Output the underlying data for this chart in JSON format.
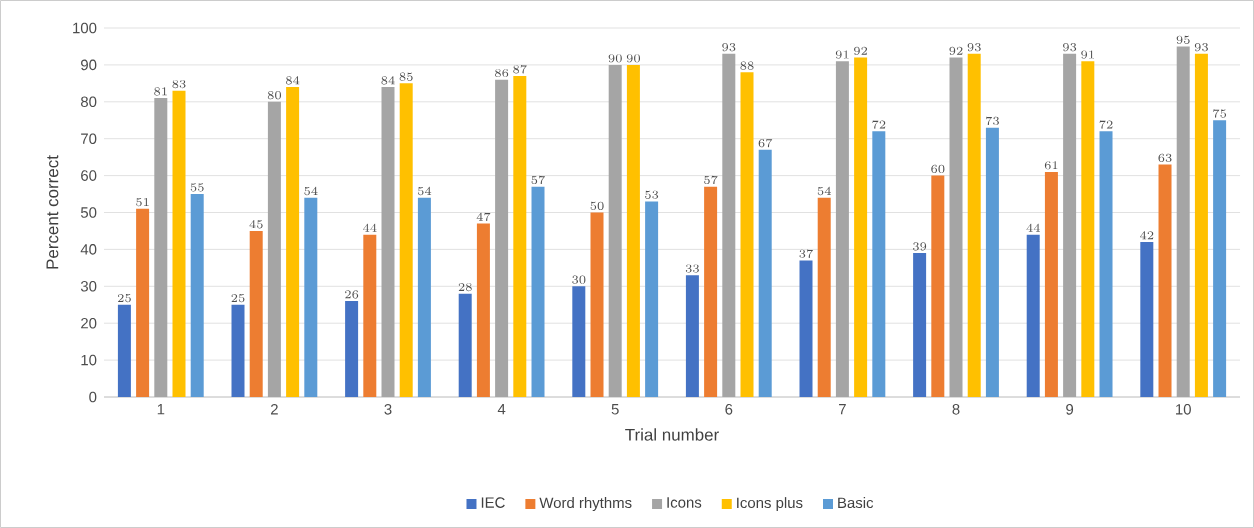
{
  "chart_data": {
    "type": "bar",
    "xlabel": "Trial number",
    "ylabel": "Percent correct",
    "categories": [
      "1",
      "2",
      "3",
      "4",
      "5",
      "6",
      "7",
      "8",
      "9",
      "10"
    ],
    "series": [
      {
        "name": "IEC",
        "color": "#4472c4",
        "values": [
          25,
          25,
          26,
          28,
          30,
          33,
          37,
          39,
          44,
          42
        ]
      },
      {
        "name": "Word rhythms",
        "color": "#ed7d31",
        "values": [
          51,
          45,
          44,
          47,
          50,
          57,
          54,
          60,
          61,
          63
        ]
      },
      {
        "name": "Icons",
        "color": "#a5a5a5",
        "values": [
          81,
          80,
          84,
          86,
          90,
          93,
          91,
          92,
          93,
          95
        ]
      },
      {
        "name": "Icons plus",
        "color": "#ffc000",
        "values": [
          83,
          84,
          85,
          87,
          90,
          88,
          92,
          93,
          91,
          93
        ]
      },
      {
        "name": "Basic",
        "color": "#5b9bd5",
        "values": [
          55,
          54,
          54,
          57,
          53,
          67,
          72,
          73,
          72,
          75
        ]
      }
    ],
    "ylim": [
      0,
      100
    ],
    "yticks": [
      0,
      10,
      20,
      30,
      40,
      50,
      60,
      70,
      80,
      90,
      100
    ],
    "grid": "y",
    "legend": "bottom",
    "data_labels": true
  }
}
